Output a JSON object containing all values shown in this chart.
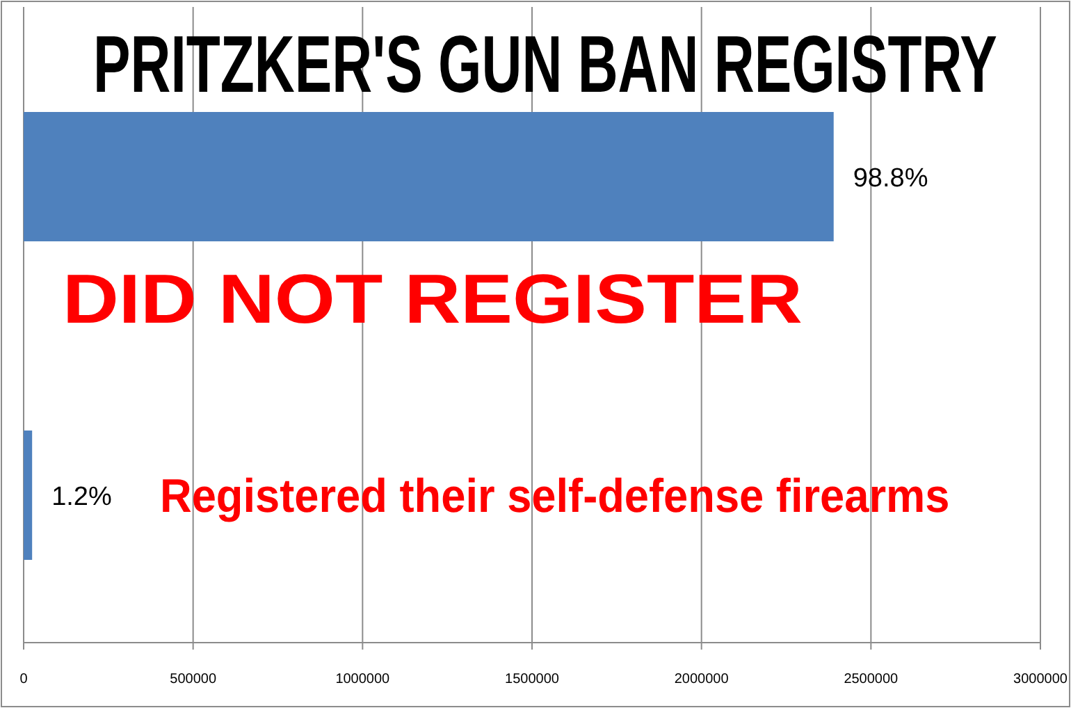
{
  "chart_data": {
    "type": "bar",
    "orientation": "horizontal",
    "title": "PRITZKER'S GUN BAN REGISTRY",
    "categories": [
      "DID NOT REGISTER",
      "Registered their self-defense firearms"
    ],
    "values": [
      2390000,
      25000
    ],
    "color": "#4f81bd",
    "annotations": [
      {
        "text": "98.8%",
        "x": 2390000,
        "y": "DID NOT REGISTER"
      },
      {
        "text": "1.2%",
        "x": 25000,
        "y": "Registered their self-defense firearms"
      }
    ],
    "xlim": [
      0,
      3000000
    ],
    "xticks": [
      0,
      500000,
      1000000,
      1500000,
      2000000,
      2500000,
      3000000
    ],
    "grid": "x"
  }
}
